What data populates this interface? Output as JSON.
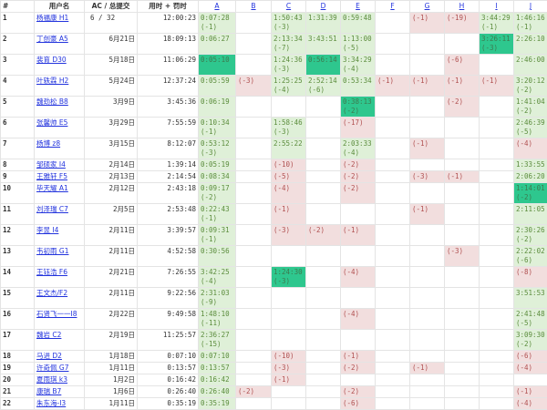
{
  "header": {
    "rank": "#",
    "user": "用户名",
    "ac": "AC / 总提交",
    "time": "用时 + 罚时",
    "problems": [
      "A",
      "B",
      "C",
      "D",
      "E",
      "F",
      "G",
      "H",
      "I",
      "J"
    ]
  },
  "colors": {
    "accepted": "#dff0d8",
    "first_blood": "#2ec78e",
    "wrong": "#f2dede",
    "link": "#2233dd"
  },
  "rows": [
    {
      "rank": "1",
      "user": "杨福康 H1",
      "ac": "6 / 32",
      "time": "12:00:23",
      "cells": [
        {
          "t": "0:07:28",
          "p": "(-1)",
          "s": "ac"
        },
        null,
        {
          "t": "1:50:43",
          "p": "(-3)",
          "s": "ac"
        },
        {
          "t": "1:31:39",
          "s": "ac"
        },
        {
          "t": "0:59:48",
          "s": "ac"
        },
        null,
        {
          "p": "(-1)",
          "s": "wa"
        },
        {
          "p": "(-19)",
          "s": "wa"
        },
        {
          "t": "3:44:29",
          "p": "(-1)",
          "s": "ac"
        },
        {
          "t": "1:46:16",
          "p": "(-1)",
          "s": "ac"
        }
      ]
    },
    {
      "rank": "2",
      "user": "丁创豪 A5",
      "ac": "6月21日",
      "time": "18:09:13",
      "cells": [
        {
          "t": "0:06:27",
          "s": "ac"
        },
        null,
        {
          "t": "2:13:34",
          "p": "(-7)",
          "s": "ac"
        },
        {
          "t": "3:43:51",
          "s": "ac"
        },
        {
          "t": "1:13:00",
          "p": "(-5)",
          "s": "ac"
        },
        null,
        null,
        null,
        {
          "t": "3:26:11",
          "p": "(-3)",
          "s": "first"
        },
        {
          "t": "2:26:10",
          "s": "ac"
        }
      ]
    },
    {
      "rank": "3",
      "user": "裴育 D30",
      "ac": "5月18日",
      "time": "11:06:29",
      "cells": [
        {
          "t": "0:05:10",
          "s": "first"
        },
        null,
        {
          "t": "1:24:36",
          "p": "(-3)",
          "s": "ac"
        },
        {
          "t": "0:56:14",
          "s": "first"
        },
        {
          "t": "3:34:29",
          "p": "(-4)",
          "s": "ac"
        },
        null,
        null,
        {
          "p": "(-6)",
          "s": "wa"
        },
        null,
        {
          "t": "2:46:00",
          "s": "ac"
        }
      ]
    },
    {
      "rank": "4",
      "user": "叶轶霖 H2",
      "ac": "5月24日",
      "time": "12:37:24",
      "cells": [
        {
          "t": "0:05:59",
          "s": "ac"
        },
        {
          "p": "(-3)",
          "s": "wa"
        },
        {
          "t": "1:25:25",
          "p": "(-4)",
          "s": "ac"
        },
        {
          "t": "2:52:14",
          "p": "(-6)",
          "s": "ac"
        },
        {
          "t": "0:53:34",
          "s": "ac"
        },
        {
          "p": "(-1)",
          "s": "wa"
        },
        {
          "p": "(-1)",
          "s": "wa"
        },
        {
          "p": "(-1)",
          "s": "wa"
        },
        {
          "p": "(-1)",
          "s": "wa"
        },
        {
          "t": "3:20:12",
          "p": "(-2)",
          "s": "ac"
        }
      ]
    },
    {
      "rank": "5",
      "user": "魏劲松 B8",
      "ac": "3月9日",
      "time": "3:45:36",
      "cells": [
        {
          "t": "0:06:19",
          "s": "ac"
        },
        null,
        null,
        null,
        {
          "t": "0:38:13",
          "p": "(-2)",
          "s": "first"
        },
        null,
        null,
        {
          "p": "(-2)",
          "s": "wa"
        },
        null,
        {
          "t": "1:41:04",
          "p": "(-2)",
          "s": "ac"
        }
      ]
    },
    {
      "rank": "6",
      "user": "张馨帅 E5",
      "ac": "3月29日",
      "time": "7:55:59",
      "cells": [
        {
          "t": "0:10:34",
          "p": "(-1)",
          "s": "ac"
        },
        null,
        {
          "t": "1:58:46",
          "p": "(-3)",
          "s": "ac"
        },
        null,
        {
          "p": "(-17)",
          "s": "wa"
        },
        null,
        null,
        null,
        null,
        {
          "t": "2:46:39",
          "p": "(-5)",
          "s": "ac"
        }
      ]
    },
    {
      "rank": "7",
      "user": "杨博 z8",
      "ac": "3月15日",
      "time": "8:12:07",
      "cells": [
        {
          "t": "0:53:12",
          "p": "(-3)",
          "s": "ac"
        },
        null,
        {
          "t": "2:55:22",
          "s": "ac"
        },
        null,
        {
          "t": "2:03:33",
          "p": "(-4)",
          "s": "ac"
        },
        null,
        {
          "p": "(-1)",
          "s": "wa"
        },
        null,
        null,
        {
          "p": "(-4)",
          "s": "wa"
        }
      ]
    },
    {
      "rank": "8",
      "user": "邹硕家 I4",
      "ac": "2月14日",
      "time": "1:39:14",
      "cells": [
        {
          "t": "0:05:19",
          "s": "ac"
        },
        null,
        {
          "p": "(-10)",
          "s": "wa"
        },
        null,
        {
          "p": "(-2)",
          "s": "wa"
        },
        null,
        null,
        null,
        null,
        {
          "t": "1:33:55",
          "s": "ac"
        }
      ]
    },
    {
      "rank": "9",
      "user": "王雅轩 F5",
      "ac": "2月13日",
      "time": "2:14:54",
      "cells": [
        {
          "t": "0:08:34",
          "s": "ac"
        },
        null,
        {
          "p": "(-5)",
          "s": "wa"
        },
        null,
        {
          "p": "(-2)",
          "s": "wa"
        },
        null,
        {
          "p": "(-3)",
          "s": "wa"
        },
        {
          "p": "(-1)",
          "s": "wa"
        },
        null,
        {
          "t": "2:06:20",
          "s": "ac"
        }
      ]
    },
    {
      "rank": "10",
      "user": "毕天耀 A1",
      "ac": "2月12日",
      "time": "2:43:18",
      "cells": [
        {
          "t": "0:09:17",
          "p": "(-2)",
          "s": "ac"
        },
        null,
        {
          "p": "(-4)",
          "s": "wa"
        },
        null,
        {
          "p": "(-2)",
          "s": "wa"
        },
        null,
        null,
        null,
        null,
        {
          "t": "1:14:01",
          "p": "(-2)",
          "s": "first"
        }
      ]
    },
    {
      "rank": "11",
      "user": "刘泽瑞 C7",
      "ac": "2月5日",
      "time": "2:53:48",
      "cells": [
        {
          "t": "0:22:43",
          "p": "(-1)",
          "s": "ac"
        },
        null,
        {
          "p": "(-1)",
          "s": "wa"
        },
        null,
        null,
        null,
        {
          "p": "(-1)",
          "s": "wa"
        },
        null,
        null,
        {
          "t": "2:11:05",
          "s": "ac"
        }
      ]
    },
    {
      "rank": "12",
      "user": "李昱 I4",
      "ac": "2月11日",
      "time": "3:39:57",
      "cells": [
        {
          "t": "0:09:31",
          "p": "(-1)",
          "s": "ac"
        },
        null,
        {
          "p": "(-3)",
          "s": "wa"
        },
        {
          "p": "(-2)",
          "s": "wa"
        },
        {
          "p": "(-1)",
          "s": "wa"
        },
        null,
        null,
        null,
        null,
        {
          "t": "2:30:26",
          "p": "(-2)",
          "s": "ac"
        }
      ]
    },
    {
      "rank": "13",
      "user": "韦初雨 G1",
      "ac": "2月11日",
      "time": "4:52:58",
      "cells": [
        {
          "t": "0:30:56",
          "s": "ac"
        },
        null,
        null,
        null,
        null,
        null,
        null,
        {
          "p": "(-3)",
          "s": "wa"
        },
        null,
        {
          "t": "2:22:02",
          "p": "(-6)",
          "s": "ac"
        }
      ]
    },
    {
      "rank": "14",
      "user": "王钰浩 F6",
      "ac": "2月21日",
      "time": "7:26:55",
      "cells": [
        {
          "t": "3:42:25",
          "p": "(-4)",
          "s": "ac"
        },
        null,
        {
          "t": "1:24:30",
          "p": "(-3)",
          "s": "first"
        },
        null,
        {
          "p": "(-4)",
          "s": "wa"
        },
        null,
        null,
        null,
        null,
        {
          "p": "(-8)",
          "s": "wa"
        }
      ]
    },
    {
      "rank": "15",
      "user": "王文杰/F2",
      "ac": "2月11日",
      "time": "9:22:56",
      "cells": [
        {
          "t": "2:31:03",
          "p": "(-9)",
          "s": "ac"
        },
        null,
        null,
        null,
        null,
        null,
        null,
        null,
        null,
        {
          "t": "3:51:53",
          "s": "ac"
        }
      ]
    },
    {
      "rank": "16",
      "user": "石贤飞一一I8",
      "ac": "2月22日",
      "time": "9:49:58",
      "cells": [
        {
          "t": "1:48:10",
          "p": "(-11)",
          "s": "ac"
        },
        null,
        null,
        null,
        {
          "p": "(-4)",
          "s": "wa"
        },
        null,
        null,
        null,
        null,
        {
          "t": "2:41:48",
          "p": "(-5)",
          "s": "ac"
        }
      ]
    },
    {
      "rank": "17",
      "user": "魏岩 C2",
      "ac": "2月19日",
      "time": "11:25:57",
      "cells": [
        {
          "t": "2:36:27",
          "p": "(-15)",
          "s": "ac"
        },
        null,
        null,
        null,
        null,
        null,
        null,
        null,
        null,
        {
          "t": "3:09:30",
          "p": "(-2)",
          "s": "ac"
        }
      ]
    },
    {
      "rank": "18",
      "user": "马进 D2",
      "ac": "1月18日",
      "time": "0:07:10",
      "cells": [
        {
          "t": "0:07:10",
          "s": "ac"
        },
        null,
        {
          "p": "(-10)",
          "s": "wa"
        },
        null,
        {
          "p": "(-1)",
          "s": "wa"
        },
        null,
        null,
        null,
        null,
        {
          "p": "(-6)",
          "s": "wa"
        }
      ]
    },
    {
      "rank": "19",
      "user": "许奇佩 G7",
      "ac": "1月11日",
      "time": "0:13:57",
      "cells": [
        {
          "t": "0:13:57",
          "s": "ac"
        },
        null,
        {
          "p": "(-3)",
          "s": "wa"
        },
        null,
        {
          "p": "(-2)",
          "s": "wa"
        },
        null,
        {
          "p": "(-1)",
          "s": "wa"
        },
        null,
        null,
        {
          "p": "(-4)",
          "s": "wa"
        }
      ]
    },
    {
      "rank": "20",
      "user": "夏雨琪 k3",
      "ac": "1月2日",
      "time": "0:16:42",
      "cells": [
        {
          "t": "0:16:42",
          "s": "ac"
        },
        null,
        {
          "p": "(-1)",
          "s": "wa"
        },
        null,
        null,
        null,
        null,
        null,
        null,
        null
      ]
    },
    {
      "rank": "21",
      "user": "康瑞 B7",
      "ac": "1月6日",
      "time": "0:26:40",
      "cells": [
        {
          "t": "0:26:40",
          "s": "ac"
        },
        {
          "p": "(-2)",
          "s": "wa"
        },
        null,
        null,
        {
          "p": "(-2)",
          "s": "wa"
        },
        null,
        null,
        null,
        null,
        {
          "p": "(-1)",
          "s": "wa"
        }
      ]
    },
    {
      "rank": "22",
      "user": "朱东海-I3",
      "ac": "1月11日",
      "time": "0:35:19",
      "cells": [
        {
          "t": "0:35:19",
          "s": "ac"
        },
        null,
        null,
        null,
        {
          "p": "(-6)",
          "s": "wa"
        },
        null,
        null,
        null,
        null,
        {
          "p": "(-4)",
          "s": "wa"
        }
      ]
    }
  ]
}
